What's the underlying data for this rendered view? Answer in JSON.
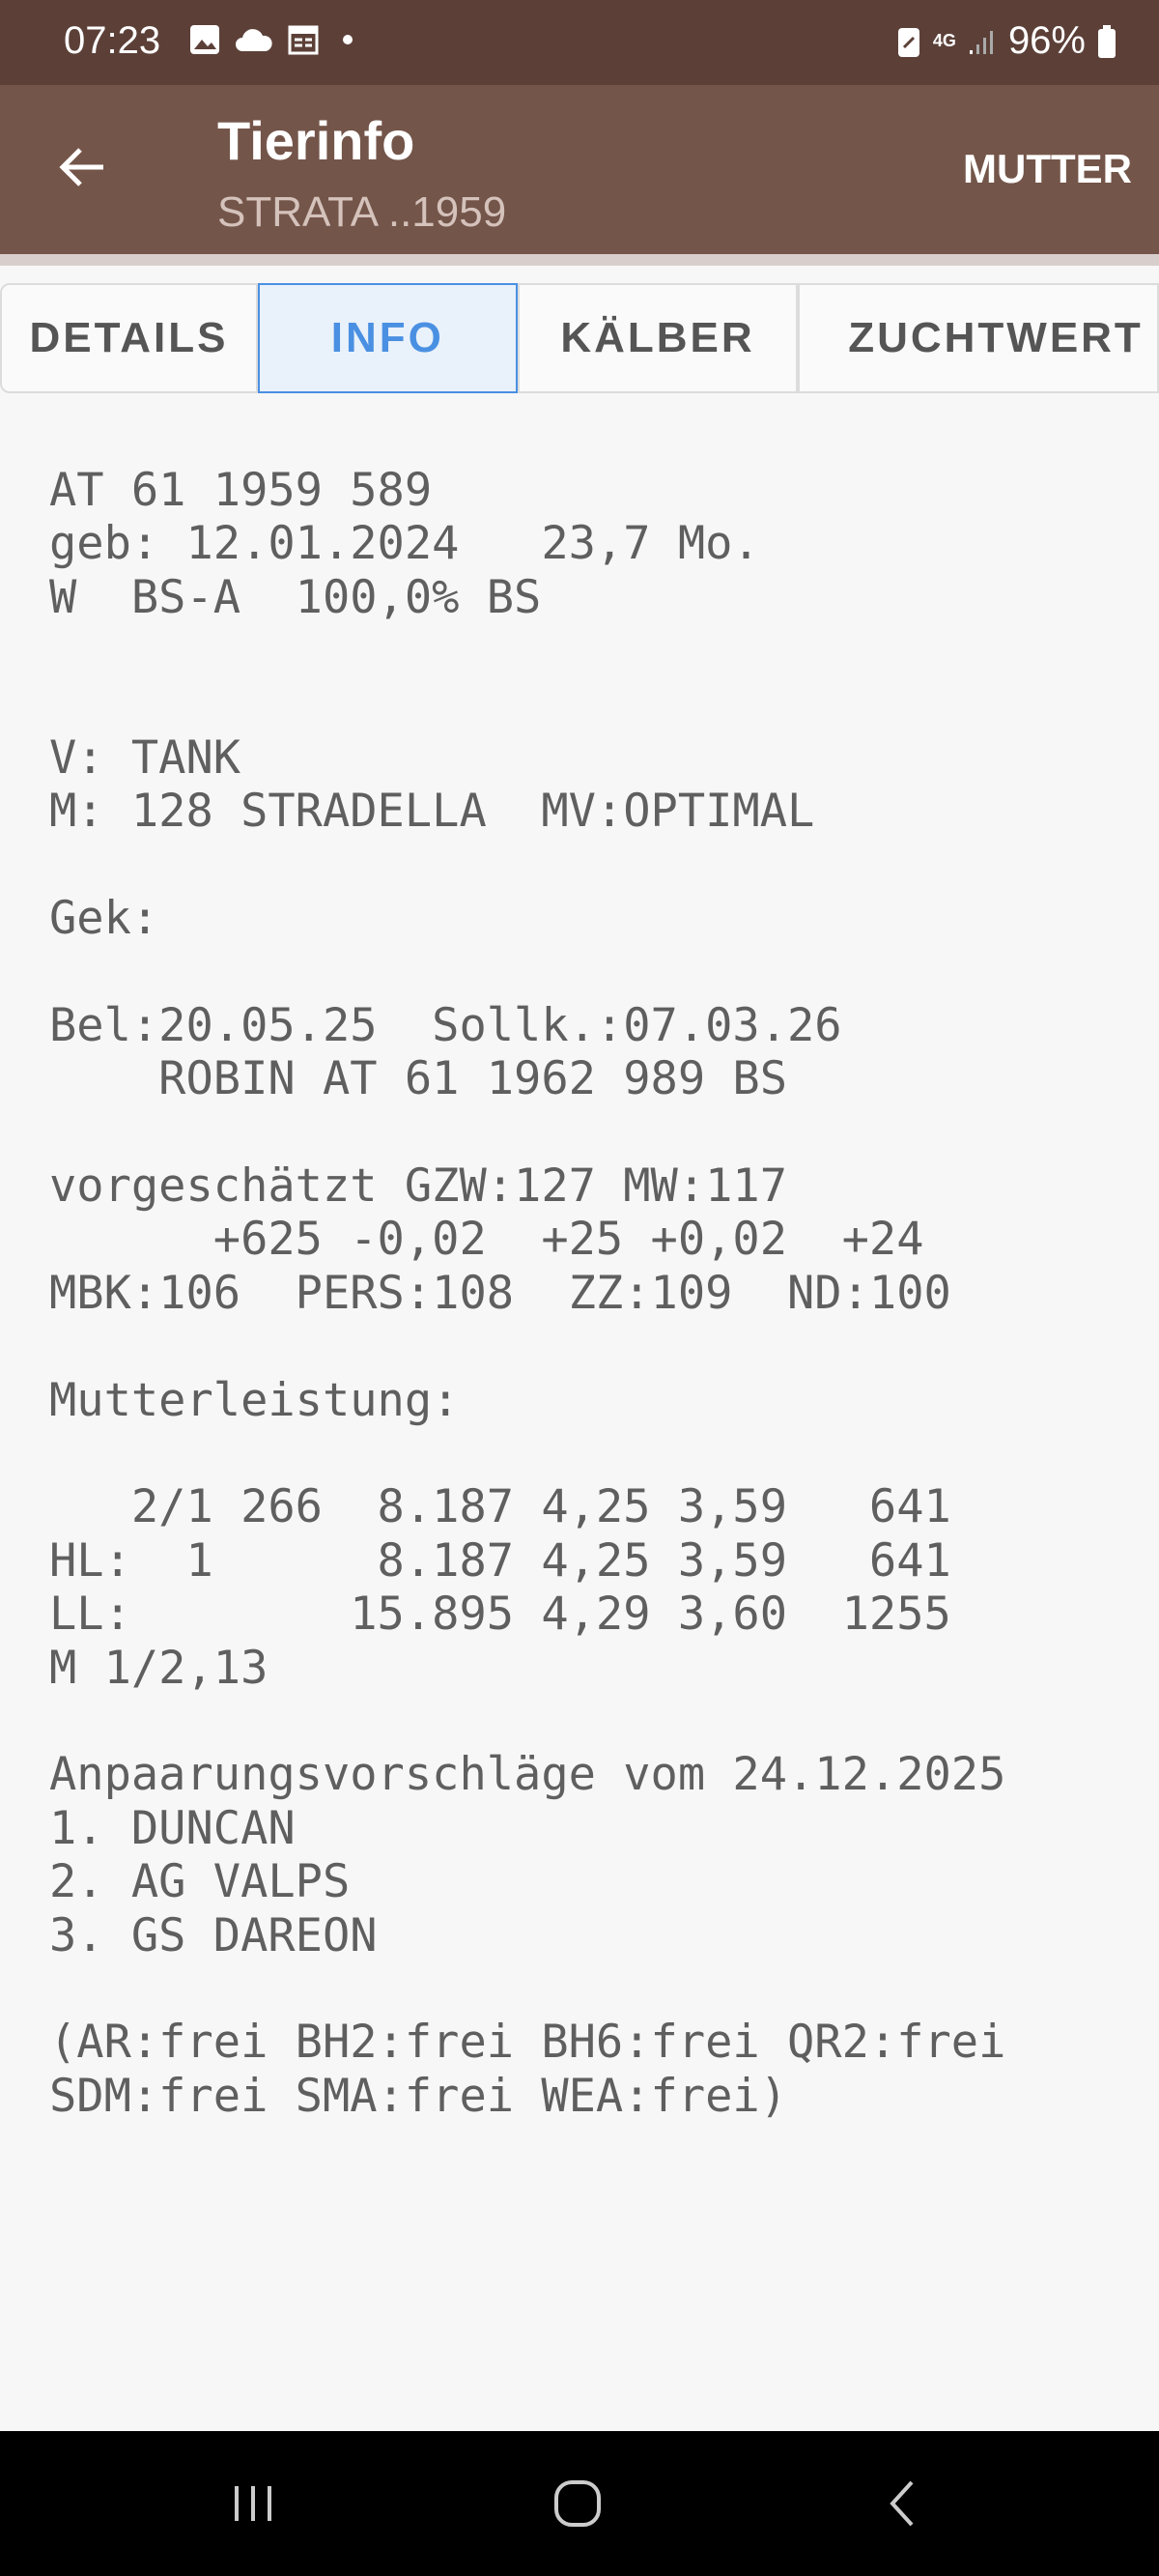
{
  "status_bar": {
    "time": "07:23",
    "network": "4G",
    "battery": "96%"
  },
  "app_bar": {
    "title": "Tierinfo",
    "subtitle": "STRATA ..1959",
    "action": "MUTTER"
  },
  "tabs": [
    {
      "label": "DETAILS"
    },
    {
      "label": "INFO",
      "active": true
    },
    {
      "label": "KÄLBER"
    },
    {
      "label": "ZUCHTWERT"
    }
  ],
  "colors": {
    "status_bar": "#5c4038",
    "app_bar": "#74554a",
    "active_tab": "#4a90e2"
  },
  "content": {
    "lines": [
      "AT 61 1959 589",
      "geb: 12.01.2024   23,7 Mo.",
      "W  BS-A  100,0% BS",
      "",
      "",
      "V: TANK",
      "M: 128 STRADELLA  MV:OPTIMAL",
      "",
      "Gek:",
      "",
      "Bel:20.05.25  Sollk.:07.03.26",
      "    ROBIN AT 61 1962 989 BS",
      "",
      "vorgeschätzt GZW:127 MW:117",
      "      +625 -0,02  +25 +0,02  +24",
      "MBK:106  PERS:108  ZZ:109  ND:100",
      "",
      "Mutterleistung:",
      "",
      "   2/1 266  8.187 4,25 3,59   641",
      "HL:  1      8.187 4,25 3,59   641",
      "LL:        15.895 4,29 3,60  1255",
      "M 1/2,13",
      "",
      "Anpaarungsvorschläge vom 24.12.2025",
      "1. DUNCAN",
      "2. AG VALPS",
      "3. GS DAREON",
      "",
      "(AR:frei BH2:frei BH6:frei QR2:frei",
      "SDM:frei SMA:frei WEA:frei)"
    ]
  }
}
